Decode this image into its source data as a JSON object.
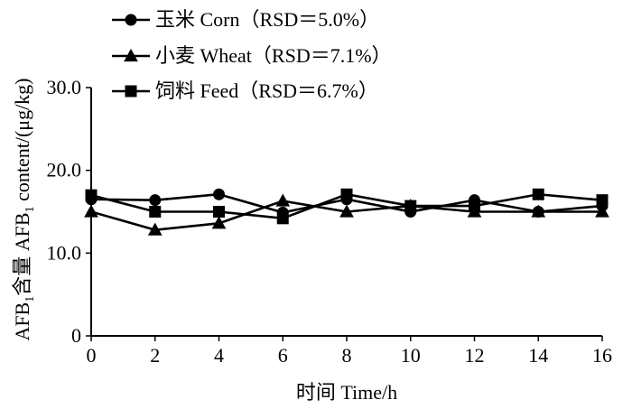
{
  "chart_data": {
    "type": "line",
    "x": [
      0,
      2,
      4,
      6,
      8,
      10,
      12,
      14,
      16
    ],
    "xlim": [
      0,
      16
    ],
    "ylim": [
      0,
      30
    ],
    "x_ticks": [
      "0",
      "2",
      "4",
      "6",
      "8",
      "10",
      "12",
      "14",
      "16"
    ],
    "y_ticks": [
      "0",
      "10.0",
      "20.0",
      "30.0"
    ],
    "y_tick_values": [
      0,
      10,
      20,
      30
    ],
    "xlabel": "时间  Time/h",
    "ylabel": "AFB1含量  AFB1 content/(μg/kg)",
    "ylabel_parts": {
      "cn_prefix": "AFB",
      "cn_sub": "1",
      "cn_suffix": "含量  AFB",
      "en_sub": "1",
      "en_suffix": " content/(μg/kg)"
    },
    "grid": false,
    "legend_position": "top-left",
    "series": [
      {
        "name": "玉米  Corn（RSD＝5.0%）",
        "marker": "circle",
        "values": [
          16.5,
          16.4,
          17.1,
          14.9,
          16.5,
          15.0,
          16.4,
          15.0,
          15.7
        ]
      },
      {
        "name": "小麦  Wheat（RSD＝7.1%）",
        "marker": "triangle",
        "values": [
          15.0,
          12.8,
          13.6,
          16.3,
          15.0,
          15.7,
          15.0,
          15.0,
          15.0
        ]
      },
      {
        "name": "饲料  Feed（RSD＝6.7%）",
        "marker": "square",
        "values": [
          17.0,
          15.0,
          15.0,
          14.2,
          17.1,
          15.7,
          15.7,
          17.1,
          16.4
        ]
      }
    ]
  }
}
